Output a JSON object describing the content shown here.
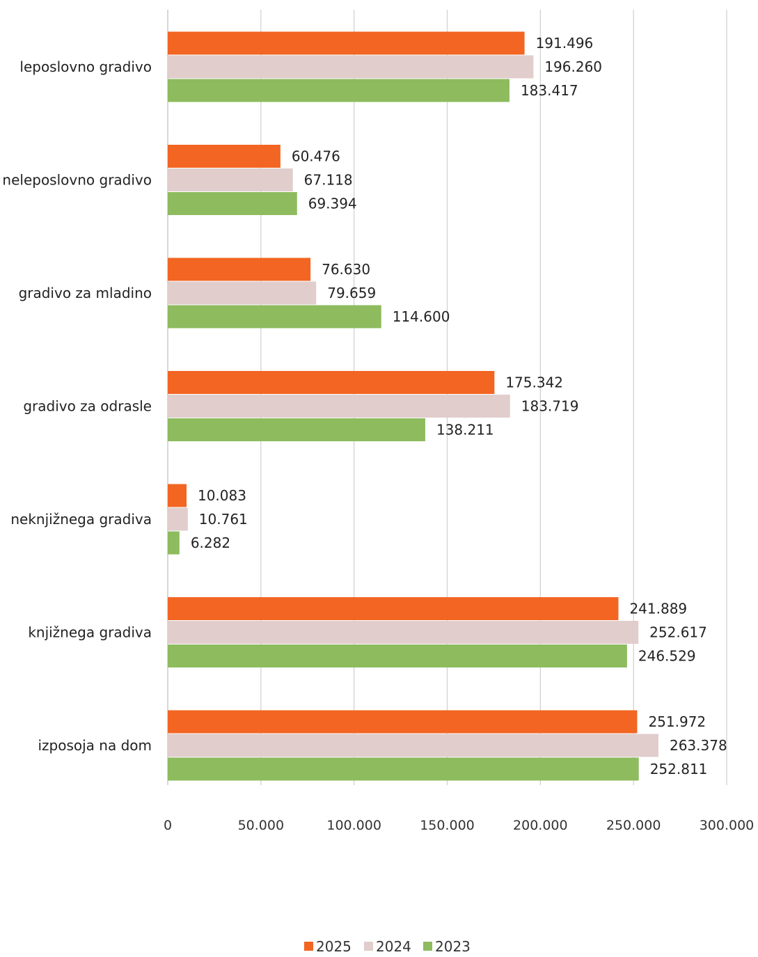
{
  "chart_data": {
    "type": "bar",
    "orientation": "horizontal",
    "title": "",
    "xlabel": "",
    "ylabel": "",
    "categories": [
      "leposlovno gradivo",
      "neleposlovno gradivo",
      "gradivo za mladino",
      "gradivo za odrasle",
      "neknjižnega gradiva",
      "knjižnega gradiva",
      "izposoja na dom"
    ],
    "series": [
      {
        "name": "2025",
        "color": "#f26522",
        "values": [
          191496,
          60476,
          76630,
          175342,
          10083,
          241889,
          251972
        ],
        "labels": [
          "191.496",
          "60.476",
          "76.630",
          "175.342",
          "10.083",
          "241.889",
          "251.972"
        ]
      },
      {
        "name": "2024",
        "color": "#e0cdcc",
        "values": [
          196260,
          67118,
          79659,
          183719,
          10761,
          252617,
          263378
        ],
        "labels": [
          "196.260",
          "67.118",
          "79.659",
          "183.719",
          "10.761",
          "252.617",
          "263.378"
        ]
      },
      {
        "name": "2023",
        "color": "#8dbb5e",
        "values": [
          183417,
          69394,
          114600,
          138211,
          6282,
          246529,
          252811
        ],
        "labels": [
          "183.417",
          "69.394",
          "114.600",
          "138.211",
          "6.282",
          "246.529",
          "252.811"
        ]
      }
    ],
    "xlim": [
      0,
      300000
    ],
    "xticks": [
      0,
      50000,
      100000,
      150000,
      200000,
      250000,
      300000
    ],
    "xtick_labels": [
      "0",
      "50.000",
      "100.000",
      "150.000",
      "200.000",
      "250.000",
      "300.000"
    ],
    "grid": "vertical",
    "legend": "bottom-center"
  }
}
